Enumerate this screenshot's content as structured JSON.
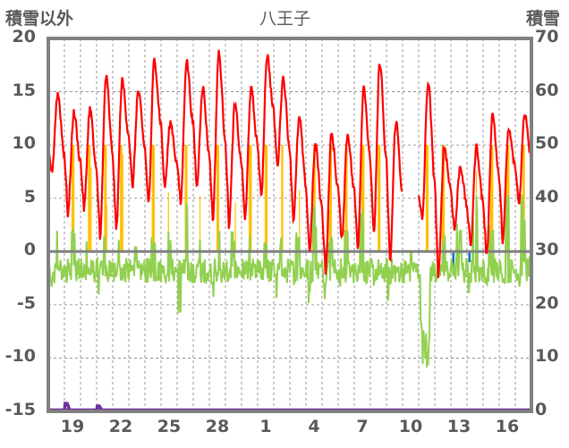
{
  "chart_data": {
    "type": "line",
    "title": "八王子",
    "ylabel_left": "積雪以外",
    "ylabel_right": "積雪",
    "ylim_left": [
      -15,
      20
    ],
    "ylim_right": [
      0,
      70
    ],
    "yticks_left": [
      "20",
      "15",
      "10",
      "5",
      "0",
      "-5",
      "-10",
      "-15"
    ],
    "yticks_right": [
      "70",
      "60",
      "50",
      "40",
      "30",
      "20",
      "10",
      "0"
    ],
    "days": [
      18,
      19,
      20,
      21,
      22,
      23,
      24,
      25,
      26,
      27,
      28,
      29,
      30,
      1,
      2,
      3,
      4,
      5,
      6,
      7,
      8,
      9,
      10,
      11,
      12,
      13,
      14,
      15,
      16,
      17
    ],
    "xtick_labels": [
      "19",
      "22",
      "25",
      "28",
      "1",
      "4",
      "7",
      "10",
      "13",
      "16"
    ],
    "grid": true,
    "colors": {
      "red": "#ff0000",
      "green": "#92d050",
      "orange": "#ffc000",
      "blue": "#0070c0",
      "purple": "#7030a0",
      "axis": "#808080",
      "text": "#595959"
    },
    "series": [
      {
        "name": "red",
        "daily_max": [
          14.8,
          13,
          13.4,
          16.4,
          16,
          15,
          18,
          12.1,
          17.9,
          15.4,
          18.6,
          13.7,
          15.2,
          18.4,
          16.3,
          12.5,
          10,
          11,
          11,
          15.5,
          17.8,
          12.2,
          null,
          15.9,
          9.8,
          8,
          9.8,
          12.9,
          11.4,
          13
        ],
        "daily_min": [
          7.5,
          3.5,
          4,
          1.5,
          2,
          6,
          4.5,
          6,
          4.5,
          6,
          3,
          2.5,
          3,
          5,
          8,
          3,
          0,
          -1.8,
          1,
          0.5,
          1.5,
          -1,
          null,
          3,
          -2.5,
          2,
          0.5,
          -0.5,
          1,
          4.5
        ]
      },
      {
        "name": "green",
        "daily_high": [
          3.5,
          2.5,
          2,
          1.5,
          2,
          1,
          1.5,
          2,
          6,
          1.5,
          2.5,
          2,
          1.5,
          1,
          1.5,
          2,
          5.5,
          1.5,
          4,
          5,
          7.5,
          1,
          0,
          6,
          2,
          3.5,
          5.5,
          3,
          5.5,
          6
        ],
        "daily_low": [
          -3.5,
          -4,
          -3,
          -4.2,
          -3,
          -4,
          -3,
          -3,
          -7,
          -3,
          -6.5,
          -3,
          -3,
          -3,
          -4.5,
          -4,
          -6,
          -5,
          -4,
          -3,
          -4,
          -5,
          -3,
          -11,
          -4,
          -3,
          -6,
          -4,
          -3.5,
          -3.5
        ]
      },
      {
        "name": "orange",
        "value": 10,
        "days_on": [
          19,
          20,
          21,
          22,
          24,
          26,
          28,
          30,
          1,
          2,
          4,
          5,
          6,
          7,
          8,
          11,
          12,
          15,
          16,
          17
        ]
      },
      {
        "name": "blue",
        "values": [
          {
            "day": 13,
            "value": -1.5
          },
          {
            "day": 14,
            "value": -1
          }
        ]
      },
      {
        "name": "purple_snow",
        "axis": "right",
        "values": [
          {
            "day": 19,
            "value": 1.5
          },
          {
            "day": 21,
            "value": 1
          }
        ]
      }
    ]
  }
}
